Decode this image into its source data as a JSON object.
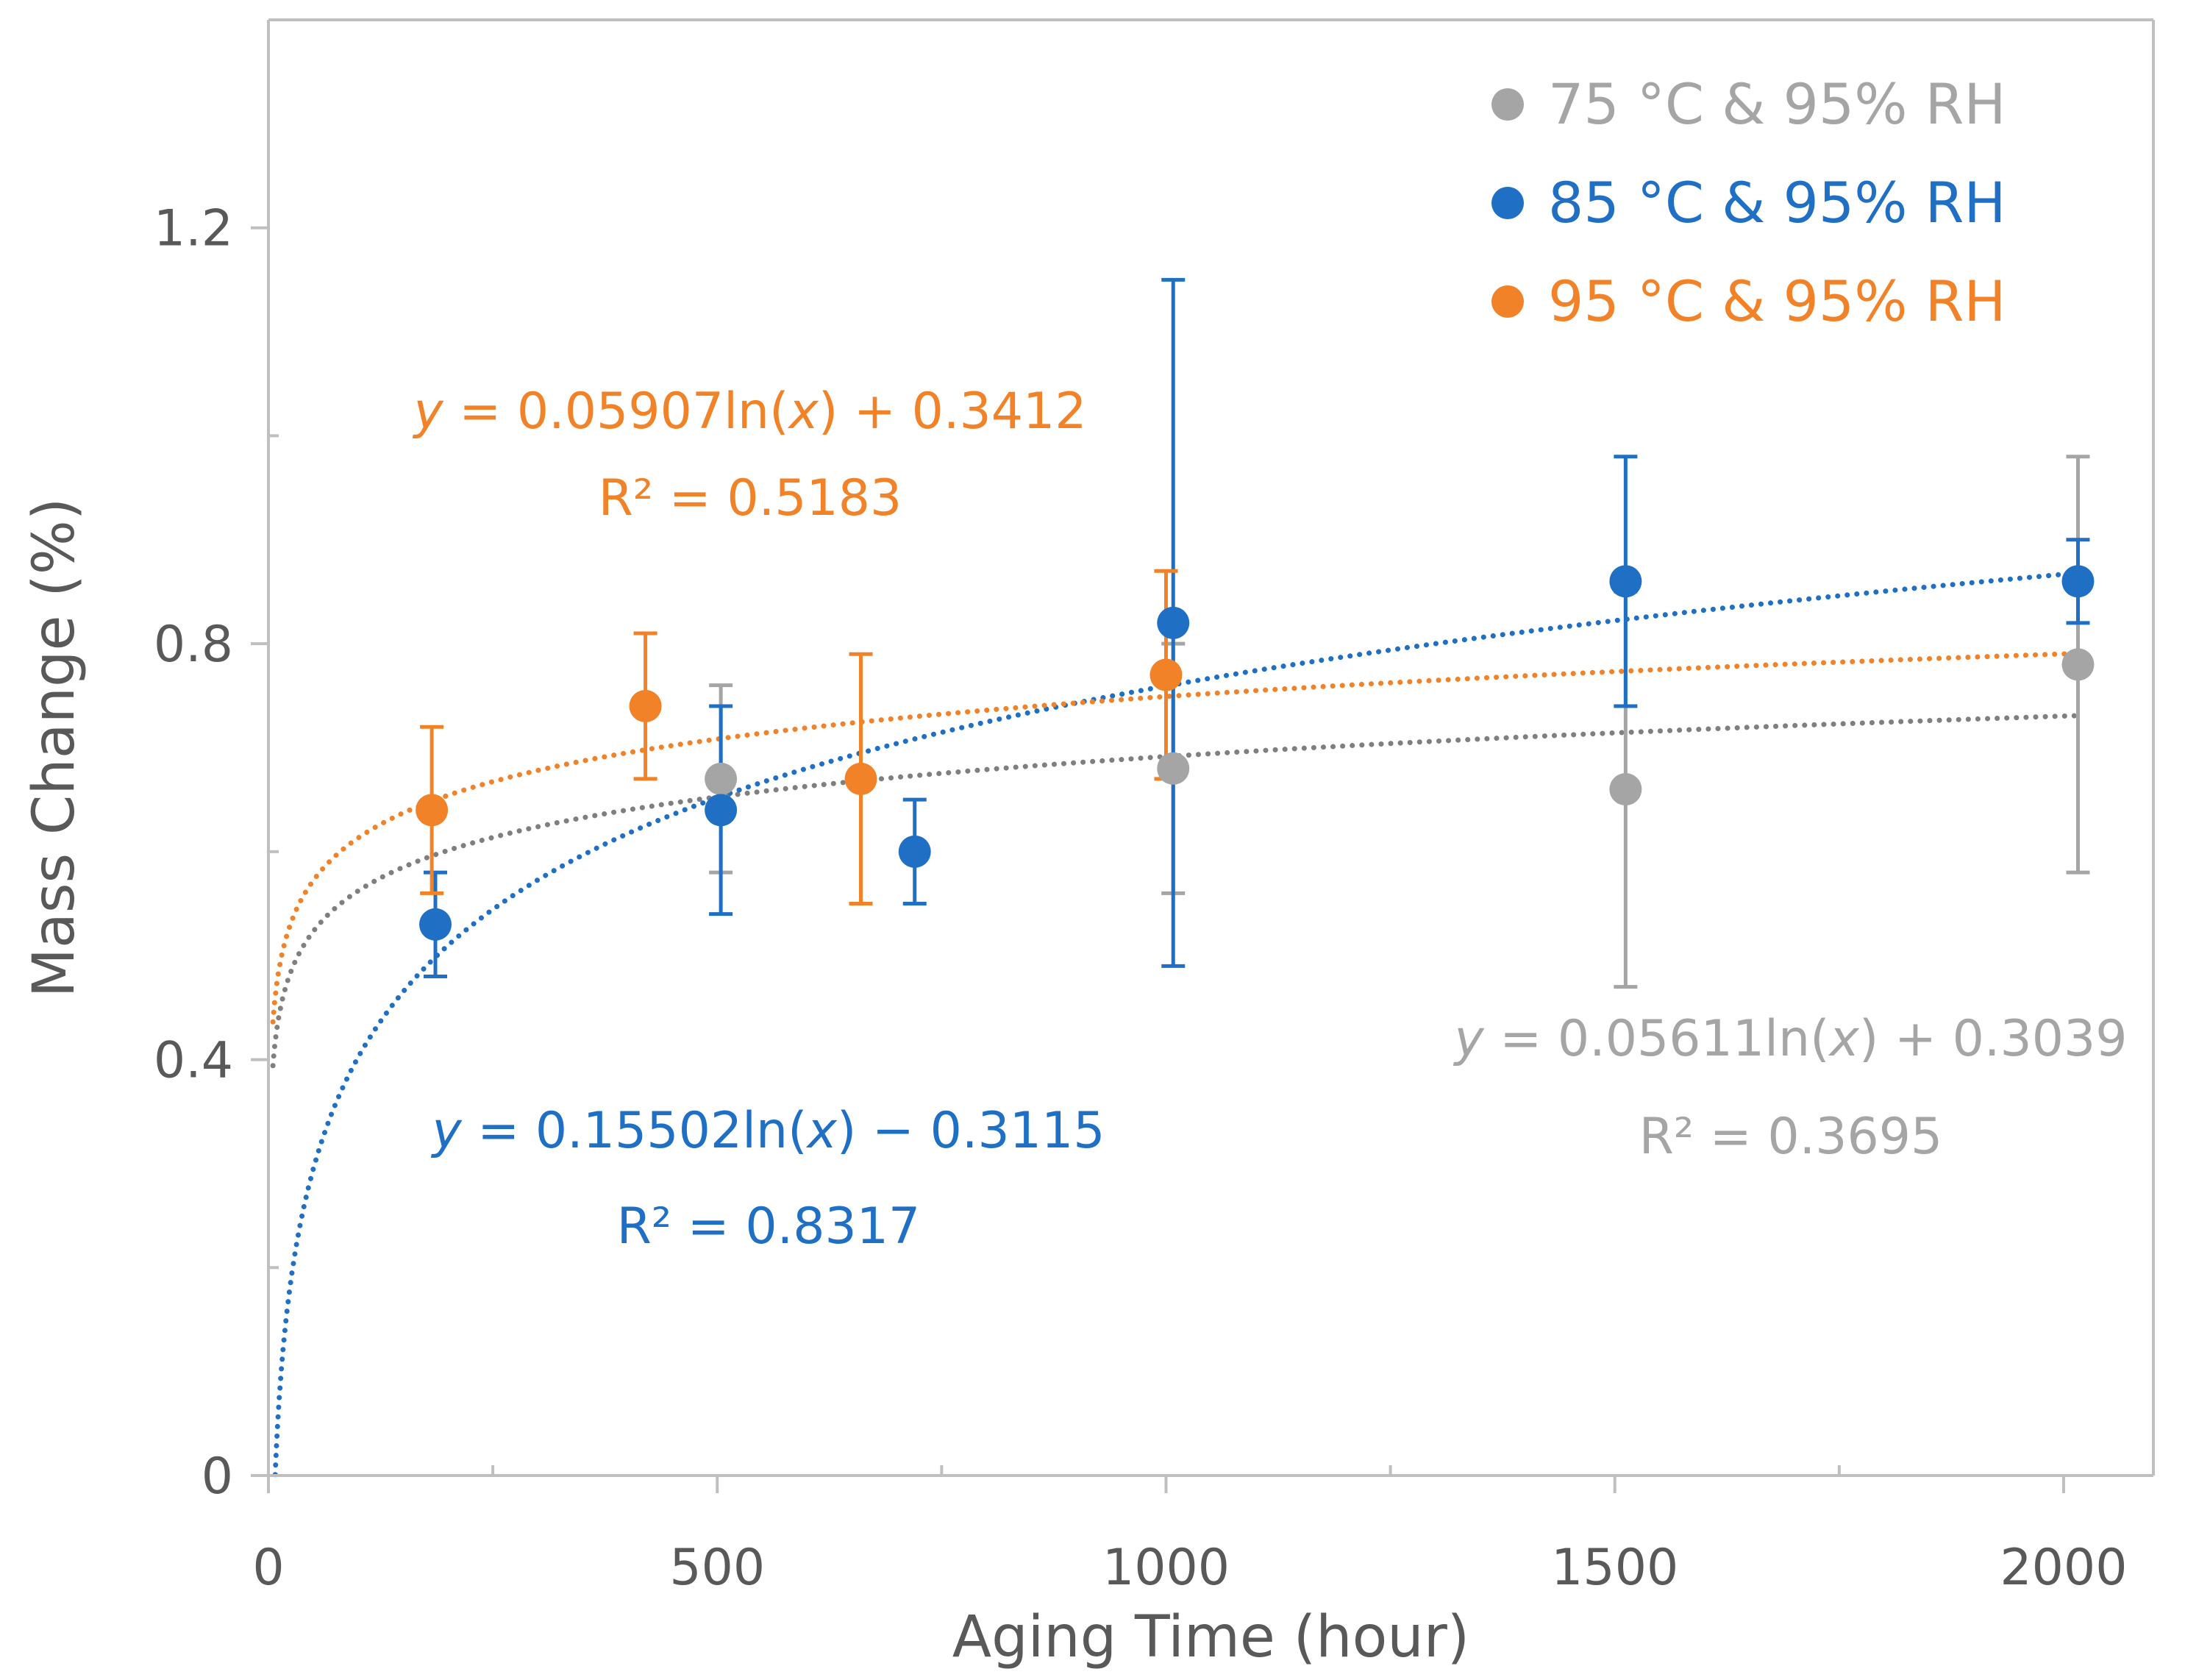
{
  "chart_data": {
    "type": "scatter",
    "xlabel": "Aging Time (hour)",
    "ylabel": "Mass Change (%)",
    "xlim": [
      0,
      2100
    ],
    "ylim": [
      0,
      1.4
    ],
    "x_ticks": [
      0,
      500,
      1000,
      1500,
      2000
    ],
    "x_tick_labels": [
      "0",
      "500",
      "1000",
      "1500",
      "2000"
    ],
    "x_minor_ticks": [
      250,
      750,
      1250,
      1750
    ],
    "y_ticks": [
      0,
      0.4,
      0.8,
      1.2
    ],
    "y_tick_labels": [
      "0",
      "0.4",
      "0.8",
      "1.2"
    ],
    "y_minor_ticks": [
      0.2,
      0.6,
      1.0
    ],
    "grid": false,
    "legend_position": "top-right",
    "series": [
      {
        "name": "75 °C & 95% RH",
        "color": "#A5A5A5",
        "trend_color": "#7F7F7F",
        "points": [
          {
            "x": 504,
            "y": 0.67,
            "lo": 0.58,
            "hi": 0.76
          },
          {
            "x": 1008,
            "y": 0.68,
            "lo": 0.56,
            "hi": 0.8
          },
          {
            "x": 1512,
            "y": 0.66,
            "lo": 0.47,
            "hi": 0.85
          },
          {
            "x": 2016,
            "y": 0.78,
            "lo": 0.58,
            "hi": 0.98
          }
        ],
        "trendline": {
          "a": 0.05611,
          "b": 0.3039,
          "x_start": 5
        },
        "equation": {
          "y_var": "y",
          "coef": " = 0.05611ln(",
          "x_var": "x",
          "rest": ") + 0.3039",
          "r2": "R² = 0.3695"
        }
      },
      {
        "name": "85 °C & 95% RH",
        "color": "#1F6FC5",
        "trend_color": "#1F6FC5",
        "points": [
          {
            "x": 186,
            "y": 0.53,
            "lo": 0.48,
            "hi": 0.58
          },
          {
            "x": 504,
            "y": 0.64,
            "lo": 0.54,
            "hi": 0.74
          },
          {
            "x": 720,
            "y": 0.6,
            "lo": 0.55,
            "hi": 0.65
          },
          {
            "x": 1008,
            "y": 0.82,
            "lo": 0.49,
            "hi": 1.15
          },
          {
            "x": 1512,
            "y": 0.86,
            "lo": 0.74,
            "hi": 0.98
          },
          {
            "x": 2016,
            "y": 0.86,
            "lo": 0.82,
            "hi": 0.9
          }
        ],
        "trendline": {
          "a": 0.15502,
          "b": -0.3115,
          "x_start": 7.5
        },
        "equation": {
          "y_var": "y",
          "coef": " = 0.15502ln(",
          "x_var": "x",
          "rest": ") − 0.3115",
          "r2": "R² = 0.8317"
        }
      },
      {
        "name": "95 °C & 95% RH",
        "color": "#F28228",
        "trend_color": "#F28228",
        "points": [
          {
            "x": 182,
            "y": 0.64,
            "lo": 0.56,
            "hi": 0.72
          },
          {
            "x": 420,
            "y": 0.74,
            "lo": 0.67,
            "hi": 0.81
          },
          {
            "x": 660,
            "y": 0.67,
            "lo": 0.55,
            "hi": 0.79
          },
          {
            "x": 1000,
            "y": 0.77,
            "lo": 0.67,
            "hi": 0.87
          }
        ],
        "trendline": {
          "a": 0.05907,
          "b": 0.3412,
          "x_start": 5
        },
        "equation": {
          "y_var": "y",
          "coef": " = 0.05907ln(",
          "x_var": "x",
          "rest": ") + 0.3412",
          "r2": "R² = 0.5183"
        }
      }
    ]
  }
}
